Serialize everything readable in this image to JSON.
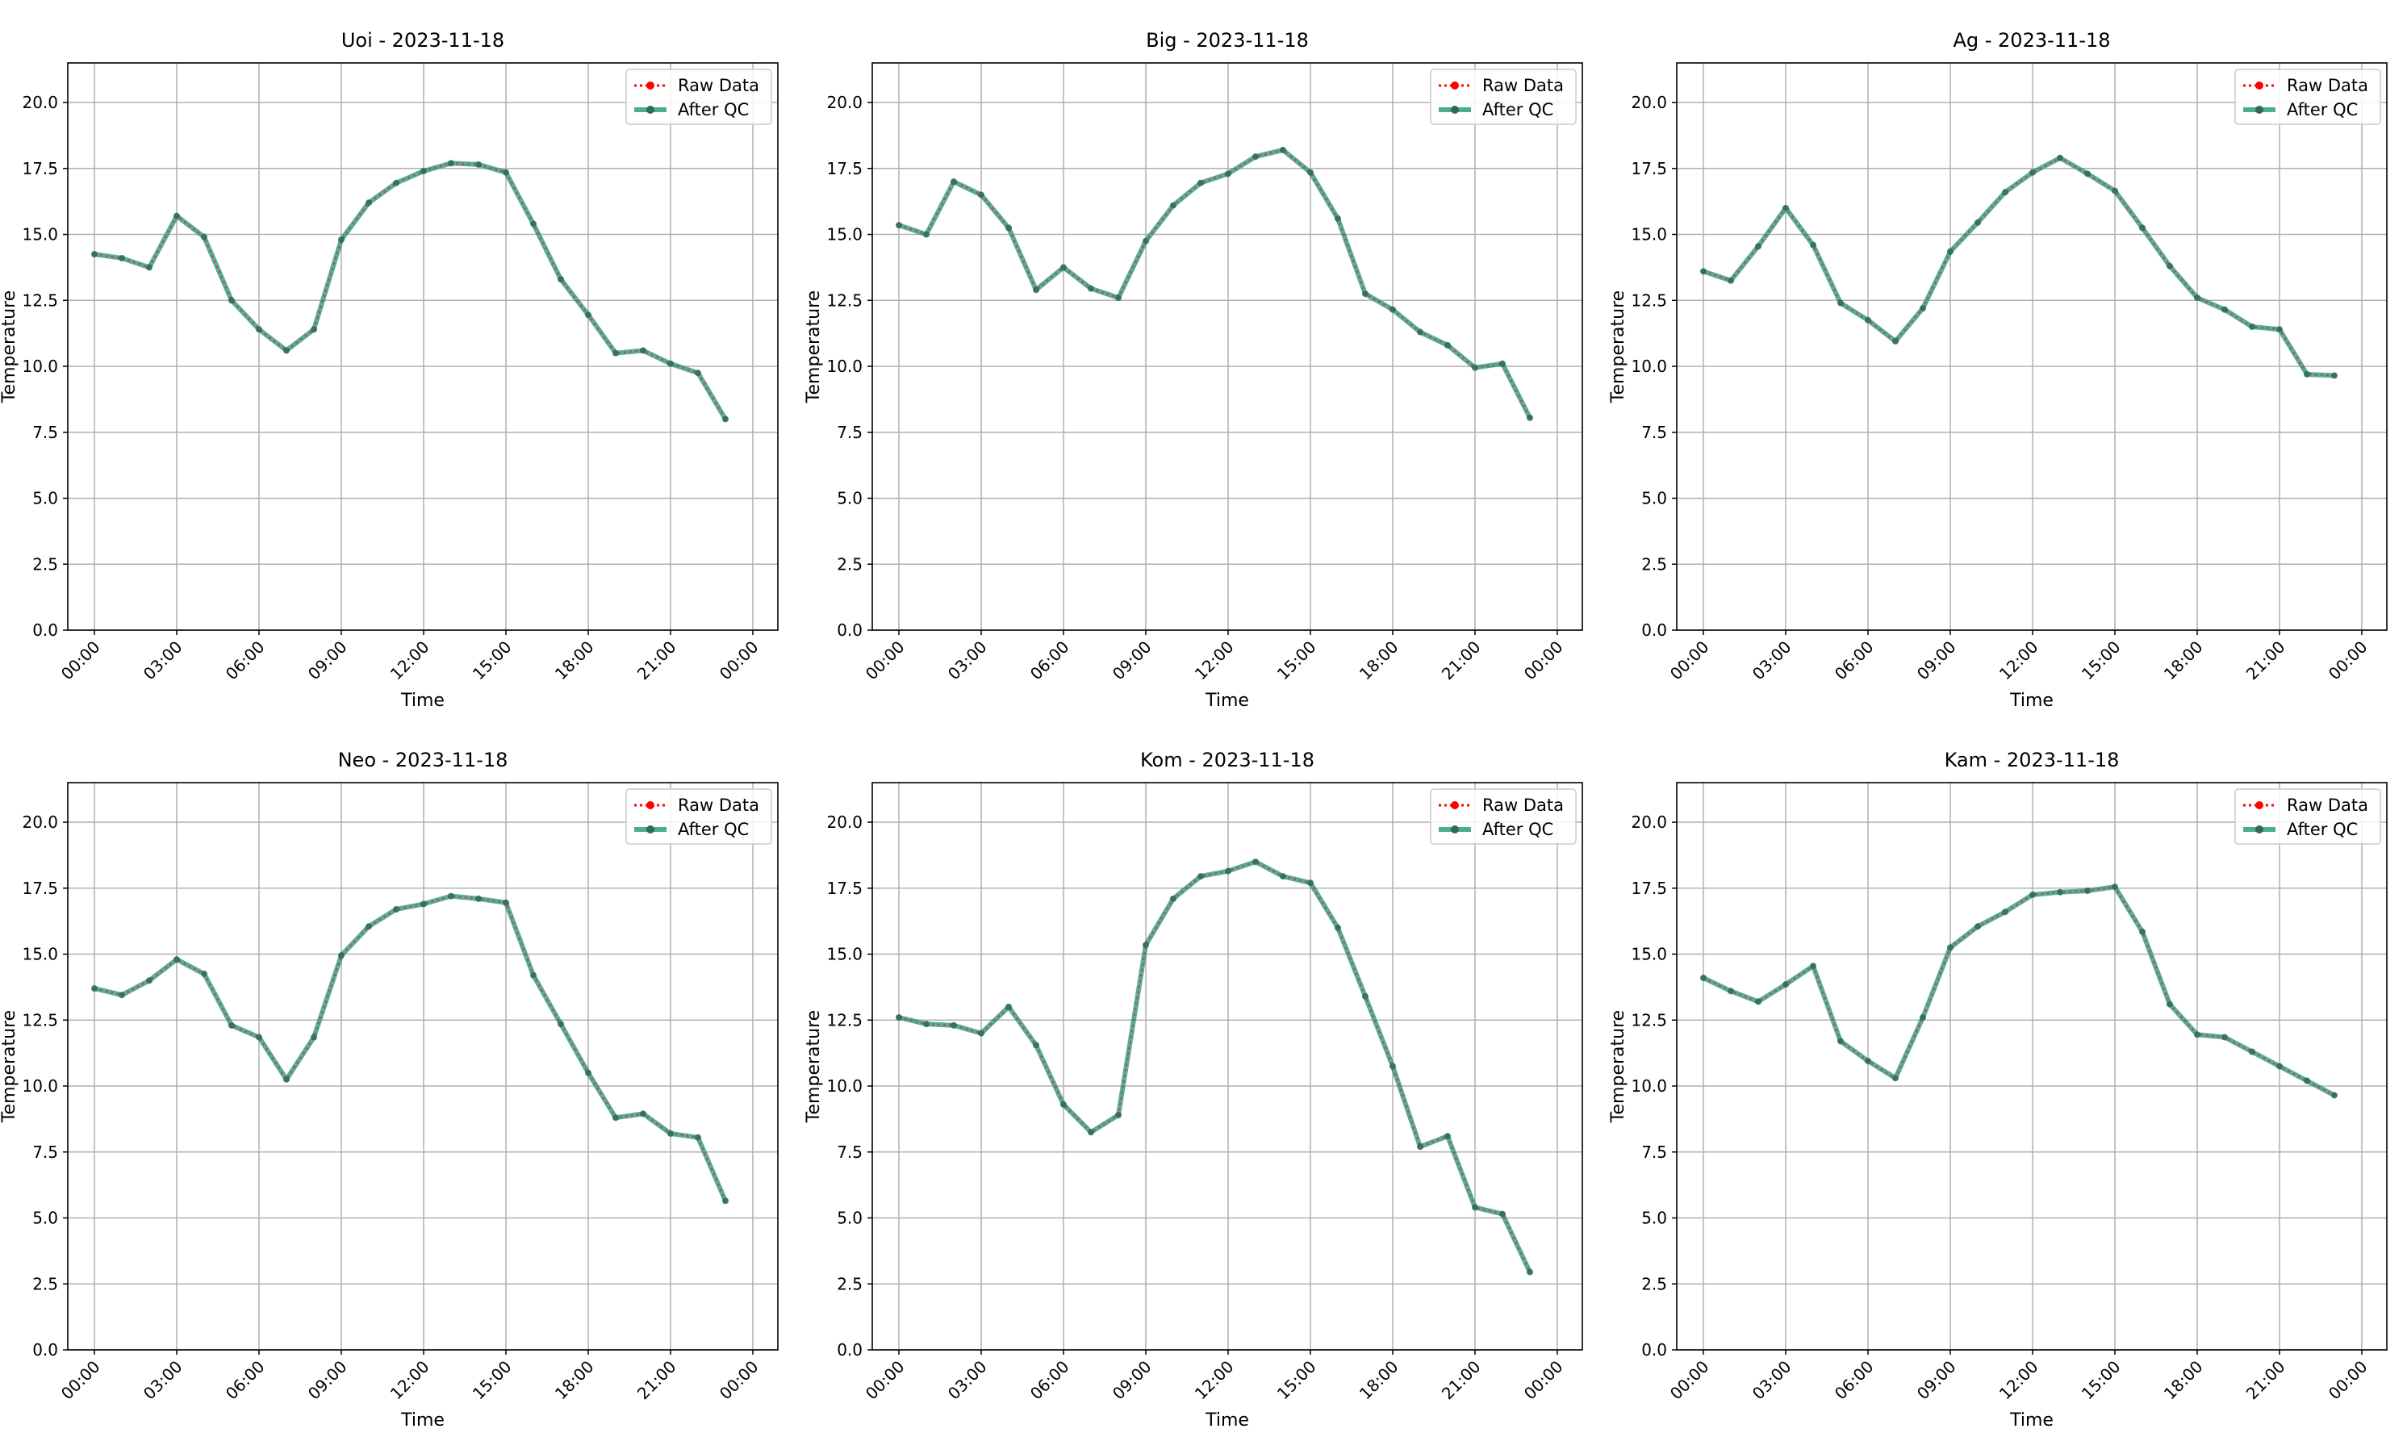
{
  "legend": {
    "raw_label": "Raw Data",
    "qc_label": "After QC"
  },
  "colors": {
    "raw": "#ff0000",
    "qc": "#2a9d7c",
    "grid": "#b0b0b0",
    "marker": "#2f6b57"
  },
  "chart_data": [
    {
      "type": "line",
      "title": "Uoi - 2023-11-18",
      "xlabel": "Time",
      "ylabel": "Temperature",
      "x": [
        "00:00",
        "01:00",
        "02:00",
        "03:00",
        "04:00",
        "05:00",
        "06:00",
        "07:00",
        "08:00",
        "09:00",
        "10:00",
        "11:00",
        "12:00",
        "13:00",
        "14:00",
        "15:00",
        "16:00",
        "17:00",
        "18:00",
        "19:00",
        "20:00",
        "21:00",
        "22:00",
        "23:00"
      ],
      "xticks": [
        "00:00",
        "03:00",
        "06:00",
        "09:00",
        "12:00",
        "15:00",
        "18:00",
        "21:00",
        "00:00"
      ],
      "yticks": [
        "0.0",
        "2.5",
        "5.0",
        "7.5",
        "10.0",
        "12.5",
        "15.0",
        "17.5",
        "20.0"
      ],
      "ylim": [
        0,
        21.5
      ],
      "grid": true,
      "legend_position": "top-right",
      "series": [
        {
          "name": "Raw Data",
          "values": [
            14.25,
            14.1,
            13.75,
            15.7,
            14.9,
            12.5,
            11.4,
            10.6,
            11.4,
            14.8,
            16.2,
            16.95,
            17.4,
            17.7,
            17.65,
            17.35,
            15.4,
            13.3,
            11.95,
            10.5,
            10.6,
            10.1,
            9.75,
            8.0
          ]
        },
        {
          "name": "After QC",
          "values": [
            14.25,
            14.1,
            13.75,
            15.7,
            14.9,
            12.5,
            11.4,
            10.6,
            11.4,
            14.8,
            16.2,
            16.95,
            17.4,
            17.7,
            17.65,
            17.35,
            15.4,
            13.3,
            11.95,
            10.5,
            10.6,
            10.1,
            9.75,
            8.0
          ]
        }
      ]
    },
    {
      "type": "line",
      "title": "Big - 2023-11-18",
      "xlabel": "Time",
      "ylabel": "Temperature",
      "x": [
        "00:00",
        "01:00",
        "02:00",
        "03:00",
        "04:00",
        "05:00",
        "06:00",
        "07:00",
        "08:00",
        "09:00",
        "10:00",
        "11:00",
        "12:00",
        "13:00",
        "14:00",
        "15:00",
        "16:00",
        "17:00",
        "18:00",
        "19:00",
        "20:00",
        "21:00",
        "22:00",
        "23:00"
      ],
      "xticks": [
        "00:00",
        "03:00",
        "06:00",
        "09:00",
        "12:00",
        "15:00",
        "18:00",
        "21:00",
        "00:00"
      ],
      "yticks": [
        "0.0",
        "2.5",
        "5.0",
        "7.5",
        "10.0",
        "12.5",
        "15.0",
        "17.5",
        "20.0"
      ],
      "ylim": [
        0,
        21.5
      ],
      "grid": true,
      "legend_position": "top-right",
      "series": [
        {
          "name": "Raw Data",
          "values": [
            15.35,
            15.0,
            17.0,
            16.5,
            15.25,
            12.9,
            13.75,
            12.95,
            12.6,
            14.75,
            16.1,
            16.95,
            17.3,
            17.95,
            18.2,
            17.35,
            15.6,
            12.75,
            12.15,
            11.3,
            10.8,
            9.95,
            10.1,
            8.05
          ]
        },
        {
          "name": "After QC",
          "values": [
            15.35,
            15.0,
            17.0,
            16.5,
            15.25,
            12.9,
            13.75,
            12.95,
            12.6,
            14.75,
            16.1,
            16.95,
            17.3,
            17.95,
            18.2,
            17.35,
            15.6,
            12.75,
            12.15,
            11.3,
            10.8,
            9.95,
            10.1,
            8.05
          ]
        }
      ]
    },
    {
      "type": "line",
      "title": "Ag - 2023-11-18",
      "xlabel": "Time",
      "ylabel": "Temperature",
      "x": [
        "00:00",
        "01:00",
        "02:00",
        "03:00",
        "04:00",
        "05:00",
        "06:00",
        "07:00",
        "08:00",
        "09:00",
        "10:00",
        "11:00",
        "12:00",
        "13:00",
        "14:00",
        "15:00",
        "16:00",
        "17:00",
        "18:00",
        "19:00",
        "20:00",
        "21:00",
        "22:00",
        "23:00"
      ],
      "xticks": [
        "00:00",
        "03:00",
        "06:00",
        "09:00",
        "12:00",
        "15:00",
        "18:00",
        "21:00",
        "00:00"
      ],
      "yticks": [
        "0.0",
        "2.5",
        "5.0",
        "7.5",
        "10.0",
        "12.5",
        "15.0",
        "17.5",
        "20.0"
      ],
      "ylim": [
        0,
        21.5
      ],
      "grid": true,
      "legend_position": "top-right",
      "series": [
        {
          "name": "Raw Data",
          "values": [
            13.6,
            13.25,
            14.55,
            16.0,
            14.6,
            12.4,
            11.75,
            10.95,
            12.2,
            14.35,
            15.45,
            16.6,
            17.35,
            17.9,
            17.3,
            16.65,
            15.25,
            13.8,
            12.6,
            12.15,
            11.5,
            11.4,
            9.7,
            9.65
          ]
        },
        {
          "name": "After QC",
          "values": [
            13.6,
            13.25,
            14.55,
            16.0,
            14.6,
            12.4,
            11.75,
            10.95,
            12.2,
            14.35,
            15.45,
            16.6,
            17.35,
            17.9,
            17.3,
            16.65,
            15.25,
            13.8,
            12.6,
            12.15,
            11.5,
            11.4,
            9.7,
            9.65
          ]
        }
      ]
    },
    {
      "type": "line",
      "title": "Neo - 2023-11-18",
      "xlabel": "Time",
      "ylabel": "Temperature",
      "x": [
        "00:00",
        "01:00",
        "02:00",
        "03:00",
        "04:00",
        "05:00",
        "06:00",
        "07:00",
        "08:00",
        "09:00",
        "10:00",
        "11:00",
        "12:00",
        "13:00",
        "14:00",
        "15:00",
        "16:00",
        "17:00",
        "18:00",
        "19:00",
        "20:00",
        "21:00",
        "22:00",
        "23:00"
      ],
      "xticks": [
        "00:00",
        "03:00",
        "06:00",
        "09:00",
        "12:00",
        "15:00",
        "18:00",
        "21:00",
        "00:00"
      ],
      "yticks": [
        "0.0",
        "2.5",
        "5.0",
        "7.5",
        "10.0",
        "12.5",
        "15.0",
        "17.5",
        "20.0"
      ],
      "ylim": [
        0,
        21.5
      ],
      "grid": true,
      "legend_position": "top-right",
      "series": [
        {
          "name": "Raw Data",
          "values": [
            13.7,
            13.45,
            14.0,
            14.8,
            14.25,
            12.3,
            11.85,
            10.25,
            11.85,
            14.95,
            16.05,
            16.7,
            16.9,
            17.2,
            17.1,
            16.95,
            14.2,
            12.35,
            10.5,
            8.8,
            8.95,
            8.2,
            8.05,
            5.65
          ]
        },
        {
          "name": "After QC",
          "values": [
            13.7,
            13.45,
            14.0,
            14.8,
            14.25,
            12.3,
            11.85,
            10.25,
            11.85,
            14.95,
            16.05,
            16.7,
            16.9,
            17.2,
            17.1,
            16.95,
            14.2,
            12.35,
            10.5,
            8.8,
            8.95,
            8.2,
            8.05,
            5.65
          ]
        }
      ]
    },
    {
      "type": "line",
      "title": "Kom - 2023-11-18",
      "xlabel": "Time",
      "ylabel": "Temperature",
      "x": [
        "00:00",
        "01:00",
        "02:00",
        "03:00",
        "04:00",
        "05:00",
        "06:00",
        "07:00",
        "08:00",
        "09:00",
        "10:00",
        "11:00",
        "12:00",
        "13:00",
        "14:00",
        "15:00",
        "16:00",
        "17:00",
        "18:00",
        "19:00",
        "20:00",
        "21:00",
        "22:00",
        "23:00"
      ],
      "xticks": [
        "00:00",
        "03:00",
        "06:00",
        "09:00",
        "12:00",
        "15:00",
        "18:00",
        "21:00",
        "00:00"
      ],
      "yticks": [
        "0.0",
        "2.5",
        "5.0",
        "7.5",
        "10.0",
        "12.5",
        "15.0",
        "17.5",
        "20.0"
      ],
      "ylim": [
        0,
        21.5
      ],
      "grid": true,
      "legend_position": "top-right",
      "series": [
        {
          "name": "Raw Data",
          "values": [
            12.6,
            12.35,
            12.3,
            12.0,
            13.0,
            11.55,
            9.3,
            8.25,
            8.9,
            15.35,
            17.1,
            17.95,
            18.15,
            18.5,
            17.95,
            17.7,
            16.0,
            13.4,
            10.75,
            7.7,
            8.1,
            5.4,
            5.15,
            2.95
          ]
        },
        {
          "name": "After QC",
          "values": [
            12.6,
            12.35,
            12.3,
            12.0,
            13.0,
            11.55,
            9.3,
            8.25,
            8.9,
            15.35,
            17.1,
            17.95,
            18.15,
            18.5,
            17.95,
            17.7,
            16.0,
            13.4,
            10.75,
            7.7,
            8.1,
            5.4,
            5.15,
            2.95
          ]
        }
      ]
    },
    {
      "type": "line",
      "title": "Kam - 2023-11-18",
      "xlabel": "Time",
      "ylabel": "Temperature",
      "x": [
        "00:00",
        "01:00",
        "02:00",
        "03:00",
        "04:00",
        "05:00",
        "06:00",
        "07:00",
        "08:00",
        "09:00",
        "10:00",
        "11:00",
        "12:00",
        "13:00",
        "14:00",
        "15:00",
        "16:00",
        "17:00",
        "18:00",
        "19:00",
        "20:00",
        "21:00",
        "22:00",
        "23:00"
      ],
      "xticks": [
        "00:00",
        "03:00",
        "06:00",
        "09:00",
        "12:00",
        "15:00",
        "18:00",
        "21:00",
        "00:00"
      ],
      "yticks": [
        "0.0",
        "2.5",
        "5.0",
        "7.5",
        "10.0",
        "12.5",
        "15.0",
        "17.5",
        "20.0"
      ],
      "ylim": [
        0,
        21.5
      ],
      "grid": true,
      "legend_position": "top-right",
      "series": [
        {
          "name": "Raw Data",
          "values": [
            14.1,
            13.6,
            13.2,
            13.85,
            14.55,
            11.7,
            10.95,
            10.3,
            12.6,
            15.25,
            16.05,
            16.6,
            17.25,
            17.35,
            17.4,
            17.55,
            15.85,
            13.1,
            11.95,
            11.85,
            11.3,
            10.75,
            10.2,
            9.65
          ]
        },
        {
          "name": "After QC",
          "values": [
            14.1,
            13.6,
            13.2,
            13.85,
            14.55,
            11.7,
            10.95,
            10.3,
            12.6,
            15.25,
            16.05,
            16.6,
            17.25,
            17.35,
            17.4,
            17.55,
            15.85,
            13.1,
            11.95,
            11.85,
            11.3,
            10.75,
            10.2,
            9.65
          ]
        }
      ]
    }
  ]
}
